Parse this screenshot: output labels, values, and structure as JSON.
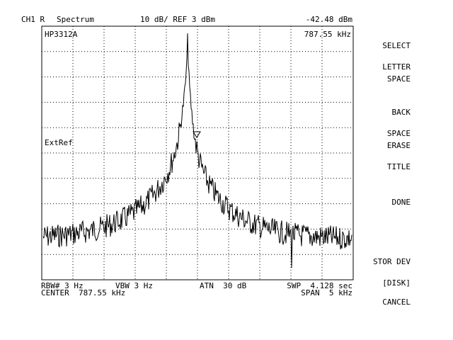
{
  "header": {
    "channel": "CH1 R",
    "mode": "Spectrum",
    "scale": "10 dB/ REF 3 dBm",
    "marker_value": "-42.48 dBm"
  },
  "graticule": {
    "model": "HP3312A",
    "marker_freq": "787.55 kHz",
    "ext_ref": "ExtRef"
  },
  "footer": {
    "rbw": "RBW# 3 Hz",
    "vbw": "VBW 3 Hz",
    "atn": "ATN  30 dB",
    "swp": "SWP  4.128 sec",
    "center": "CENTER  787.55 kHz",
    "span": "SPAN  5 kHz"
  },
  "softkeys": [
    {
      "line1": "SELECT",
      "line2": "LETTER"
    },
    {
      "line1": "SPACE",
      "line2": ""
    },
    {
      "line1": "BACK",
      "line2": "SPACE"
    },
    {
      "line1": "ERASE",
      "line2": "TITLE"
    },
    {
      "line1": "DONE",
      "line2": ""
    },
    {
      "line1": "STOR DEV",
      "line2": "[DISK]"
    },
    {
      "line1": "CANCEL",
      "line2": ""
    }
  ],
  "colors": {
    "trace": "#000000",
    "grid": "#000000",
    "background": "#ffffff"
  }
}
